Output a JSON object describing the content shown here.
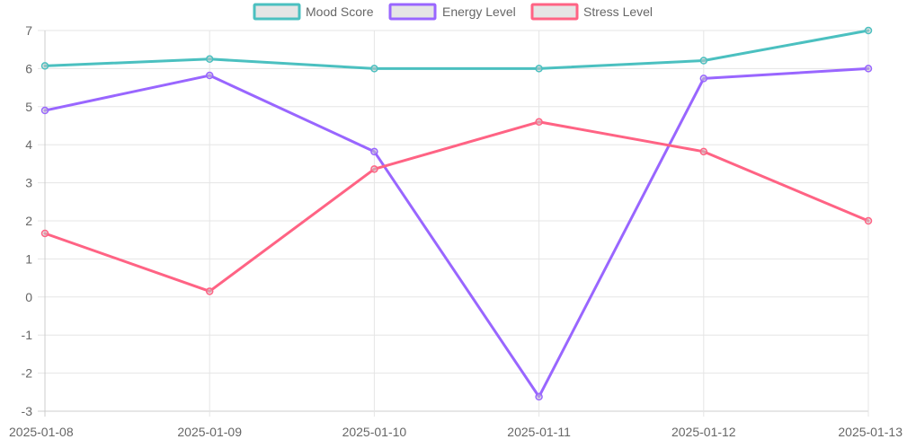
{
  "chart_data": {
    "type": "line",
    "title": "",
    "xlabel": "",
    "ylabel": "",
    "categories": [
      "2025-01-08",
      "2025-01-09",
      "2025-01-10",
      "2025-01-11",
      "2025-01-12",
      "2025-01-13"
    ],
    "ylim": [
      -3,
      7
    ],
    "yticks": [
      "7",
      "6",
      "5",
      "4",
      "3",
      "2",
      "1",
      "0",
      "-1",
      "-2",
      "-3"
    ],
    "grid": true,
    "legend_position": "top",
    "series": [
      {
        "name": "Mood Score",
        "color": "#4bc0c0",
        "fill": "#e5e5e5",
        "values": [
          6.07,
          6.25,
          6.0,
          6.0,
          6.21,
          7.0
        ]
      },
      {
        "name": "Energy Level",
        "color": "#9966ff",
        "fill": "#e5e5e5",
        "values": [
          4.9,
          5.82,
          3.82,
          -2.62,
          5.74,
          6.0
        ]
      },
      {
        "name": "Stress Level",
        "color": "#ff6384",
        "fill": "#e5e5e5",
        "values": [
          1.67,
          0.15,
          3.36,
          4.6,
          3.82,
          2.0
        ]
      }
    ]
  }
}
